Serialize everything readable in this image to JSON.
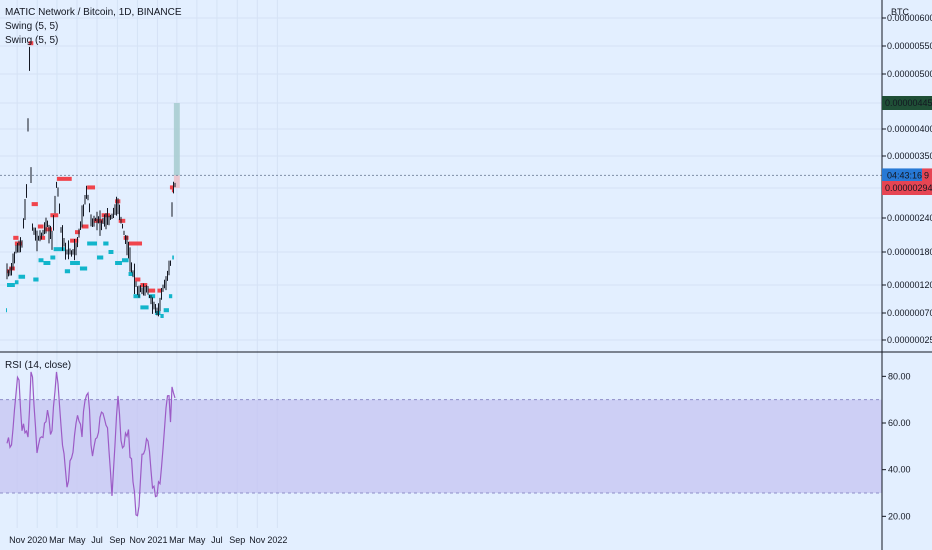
{
  "chart_title": "MATIC Network / Bitcoin, 1D, BINANCE",
  "indicators": [
    "Swing (5, 5)",
    "Swing (5, 5)"
  ],
  "currency": "BTC",
  "price_tags": {
    "target": "0.00000445",
    "countdown": "04:43:16",
    "countdown_suffix": "9",
    "stop": "0.00000294"
  },
  "rsi_title": "RSI (14, close)",
  "colors": {
    "background": "#e3efff",
    "resistance": "#f0444c",
    "support": "#12b5cb",
    "candle": "#131722",
    "rsi_line": "#9c5bc6",
    "rsi_band": "#c5c4f2",
    "target_zone": "#a9cdd2",
    "stop_zone": "#ebc1c9",
    "target_tag": "#1f4f36",
    "countdown_tag": "#2779d5",
    "stop_tag": "#e64553"
  },
  "chart_data": [
    {
      "type": "line",
      "title": "MATIC Network / Bitcoin, 1D, BINANCE",
      "xlabel": "",
      "ylabel": "BTC",
      "x_ticks": [
        "Nov",
        "2020",
        "Mar",
        "May",
        "Jul",
        "Sep",
        "Nov",
        "2021",
        "Mar",
        "May",
        "Jul",
        "Sep",
        "Nov",
        "2022"
      ],
      "y_ticks": [
        "0.00000600",
        "0.00000550",
        "0.00000500",
        "0.00000445",
        "0.00000400",
        "0.00000350",
        "0.00000294",
        "0.00000240",
        "0.00000180",
        "0.00000120",
        "0.00000070",
        "0.00000025"
      ],
      "ylim": [
        2.5e-07,
        6e-06
      ],
      "x": [
        "2019-10-01",
        "2019-10-15",
        "2019-11-01",
        "2019-11-15",
        "2019-12-01",
        "2019-12-08",
        "2019-12-15",
        "2020-01-01",
        "2020-01-15",
        "2020-02-01",
        "2020-02-15",
        "2020-03-01",
        "2020-03-15",
        "2020-04-01",
        "2020-04-15",
        "2020-05-01",
        "2020-05-15",
        "2020-06-01",
        "2020-06-15",
        "2020-07-01",
        "2020-07-15",
        "2020-08-01",
        "2020-08-15",
        "2020-09-01",
        "2020-09-15",
        "2020-10-01",
        "2020-10-15",
        "2020-11-01",
        "2020-11-15",
        "2020-12-01",
        "2020-12-15",
        "2021-01-01",
        "2021-01-15",
        "2021-02-01",
        "2021-02-10",
        "2021-02-15",
        "2021-02-20",
        "2021-02-25"
      ],
      "series": [
        {
          "values": [
            1.4e-06,
            1.5e-06,
            1.9e-06,
            1.9e-06,
            3e-06,
            5.5e-06,
            2.3e-06,
            2e-06,
            2.1e-06,
            2.3e-06,
            2e-06,
            3.1e-06,
            2.1e-06,
            1.8e-06,
            1.8e-06,
            1.9e-06,
            2.4e-06,
            2.9e-06,
            2.3e-06,
            2.4e-06,
            2.3e-06,
            2.4e-06,
            2.4e-06,
            2.7e-06,
            2.3e-06,
            1.9e-06,
            1.5e-06,
            1.1e-06,
            1.1e-06,
            1.1e-06,
            9e-07,
            7e-07,
            1.1e-06,
            1.4e-06,
            1.6e-06,
            2.7e-06,
            3e-06,
            3e-06
          ]
        }
      ]
    },
    {
      "type": "line",
      "title": "RSI (14, close)",
      "xlabel": "",
      "ylabel": "",
      "y_ticks": [
        "80.00",
        "60.00",
        "40.00",
        "20.00"
      ],
      "ylim": [
        15,
        90
      ],
      "band": [
        30,
        70
      ],
      "x": [
        "2019-10-01",
        "2019-10-15",
        "2019-11-01",
        "2019-11-15",
        "2019-12-01",
        "2019-12-08",
        "2019-12-15",
        "2020-01-01",
        "2020-01-15",
        "2020-02-01",
        "2020-02-15",
        "2020-03-01",
        "2020-03-15",
        "2020-04-01",
        "2020-04-15",
        "2020-05-01",
        "2020-05-15",
        "2020-06-01",
        "2020-06-15",
        "2020-07-01",
        "2020-07-15",
        "2020-08-01",
        "2020-08-15",
        "2020-09-01",
        "2020-09-15",
        "2020-10-01",
        "2020-10-15",
        "2020-11-01",
        "2020-11-15",
        "2020-12-01",
        "2020-12-15",
        "2021-01-01",
        "2021-01-15",
        "2021-02-01",
        "2021-02-10",
        "2021-02-15",
        "2021-02-20",
        "2021-02-25"
      ],
      "series": [
        {
          "values": [
            52,
            48,
            84,
            60,
            53,
            63,
            86,
            48,
            52,
            62,
            56,
            82,
            52,
            35,
            45,
            65,
            54,
            78,
            47,
            57,
            63,
            58,
            28,
            73,
            48,
            58,
            41,
            18,
            46,
            56,
            37,
            28,
            45,
            73,
            62,
            79,
            68,
            74
          ]
        }
      ]
    }
  ]
}
